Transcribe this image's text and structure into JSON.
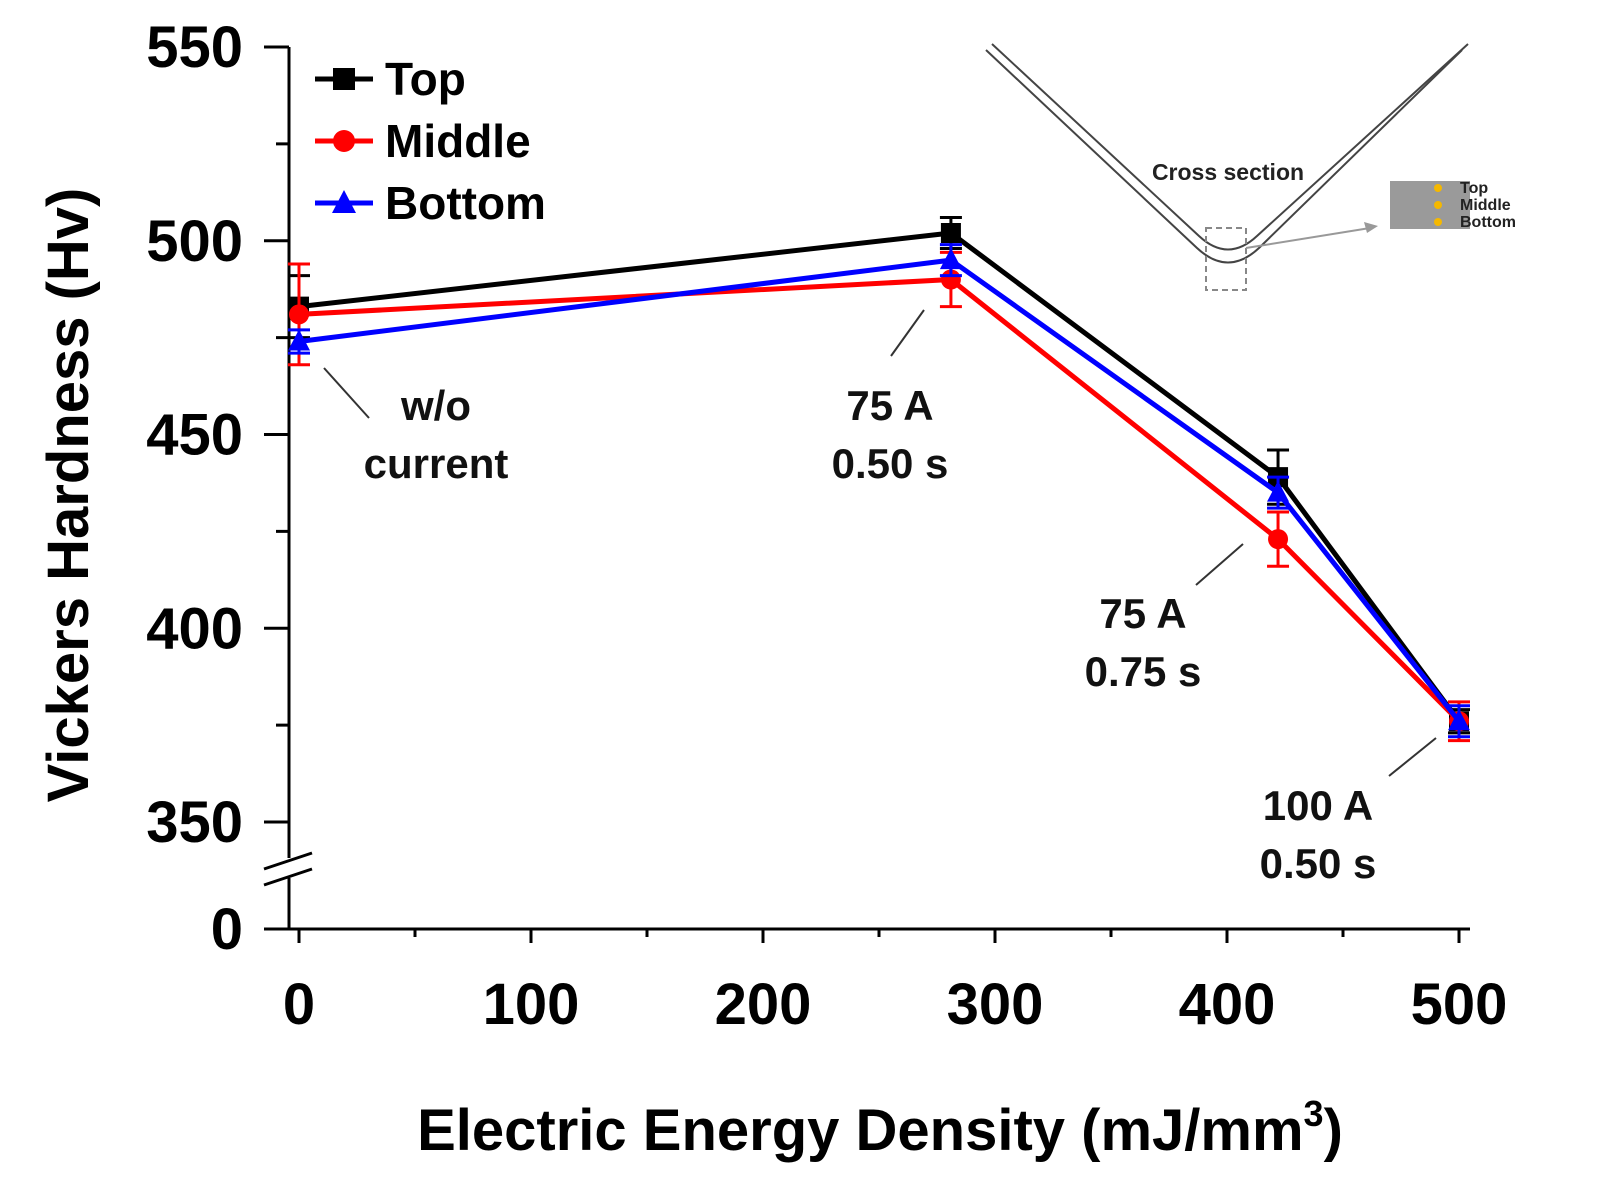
{
  "chart_data": {
    "type": "line",
    "title": "",
    "xlabel": "Electric Energy Density (mJ/mm",
    "xlabel_sup": "3",
    "xlabel_close": ")",
    "ylabel": "Vickers Hardness (Hv)",
    "xlim": [
      -10,
      505
    ],
    "ylim": [
      350,
      550
    ],
    "y_break_value": 0,
    "xticks": [
      0,
      100,
      200,
      300,
      400,
      500
    ],
    "xtick_labels": [
      "0",
      "100",
      "200",
      "300",
      "400",
      "500"
    ],
    "yticks": [
      350,
      400,
      450,
      500,
      550
    ],
    "ytick_labels": [
      "350",
      "400",
      "450",
      "500",
      "550"
    ],
    "y_break_label": "0",
    "x": [
      0,
      281,
      422,
      500
    ],
    "series": [
      {
        "name": "Top",
        "color": "#000000",
        "marker": "square",
        "values": [
          483,
          502,
          439,
          376
        ],
        "errors": [
          8,
          4,
          7,
          3
        ]
      },
      {
        "name": "Middle",
        "color": "#ff0000",
        "marker": "circle",
        "values": [
          481,
          490,
          423,
          376
        ],
        "errors": [
          13,
          7,
          7,
          5
        ]
      },
      {
        "name": "Bottom",
        "color": "#0000ff",
        "marker": "triangle",
        "values": [
          474,
          495,
          435,
          376
        ],
        "errors": [
          3,
          4,
          4,
          4
        ]
      }
    ],
    "legend_position": "top-left",
    "annotations": [
      {
        "line1": "w/o",
        "line2": "current"
      },
      {
        "line1": "75 A",
        "line2": "0.50 s"
      },
      {
        "line1": "75 A",
        "line2": "0.75 s"
      },
      {
        "line1": "100 A",
        "line2": "0.50 s"
      }
    ],
    "inset": {
      "title": "Cross section",
      "labels": [
        "Top",
        "Middle",
        "Bottom"
      ],
      "sample_color": "#9a9a9a",
      "dot_color": "#f5b800"
    }
  }
}
